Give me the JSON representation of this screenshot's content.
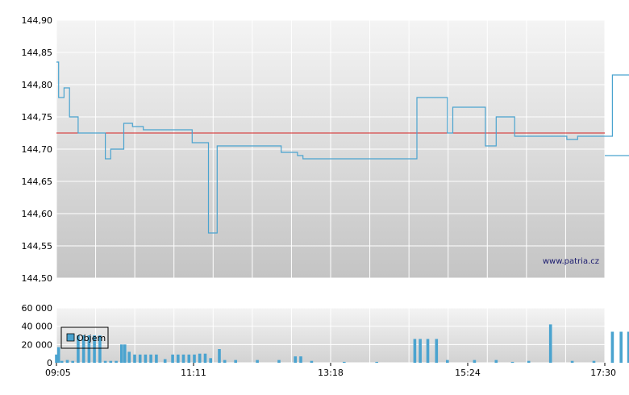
{
  "chart_data": [
    {
      "type": "line",
      "title": "",
      "xlabel": "",
      "ylabel": "",
      "ylim": [
        144.5,
        144.9
      ],
      "y_ticks": [
        "144,90",
        "144,85",
        "144,80",
        "144,75",
        "144,70",
        "144,65",
        "144,60",
        "144,55",
        "144,50"
      ],
      "grid": true,
      "reference_line": {
        "value": 144.725,
        "color": "#d62020"
      },
      "series": [
        {
          "color": "#4aa3cf",
          "step": true,
          "points": [
            [
              "09:05",
              144.835
            ],
            [
              "09:07",
              144.78
            ],
            [
              "09:12",
              144.795
            ],
            [
              "09:17",
              144.75
            ],
            [
              "09:25",
              144.725
            ],
            [
              "09:50",
              144.685
            ],
            [
              "09:55",
              144.7
            ],
            [
              "10:07",
              144.74
            ],
            [
              "10:15",
              144.735
            ],
            [
              "10:25",
              144.73
            ],
            [
              "11:10",
              144.71
            ],
            [
              "11:25",
              144.57
            ],
            [
              "11:33",
              144.705
            ],
            [
              "12:32",
              144.695
            ],
            [
              "12:47",
              144.69
            ],
            [
              "12:52",
              144.685
            ],
            [
              "14:37",
              144.78
            ],
            [
              "15:05",
              144.725
            ],
            [
              "15:10",
              144.765
            ],
            [
              "15:40",
              144.705
            ],
            [
              "15:50",
              144.75
            ],
            [
              "16:07",
              144.72
            ],
            [
              "16:55",
              144.715
            ],
            [
              "17:05",
              144.72
            ],
            [
              "17:37",
              144.815
            ],
            [
              "18:05",
              144.775
            ],
            [
              "18:15",
              144.68
            ],
            [
              "18:35",
              144.69
            ]
          ]
        }
      ],
      "watermark": "www.patria.cz"
    },
    {
      "type": "bar",
      "title": "",
      "ylim": [
        0,
        60000
      ],
      "y_ticks": [
        "60 000",
        "40 000",
        "20 000",
        "0"
      ],
      "x_ticks": [
        "09:05",
        "11:11",
        "13:18",
        "15:24",
        "17:30"
      ],
      "x_range": [
        "09:05",
        "17:30"
      ],
      "grid": true,
      "legend": {
        "entries": [
          "Objem"
        ],
        "position": "top-left"
      },
      "series": [
        {
          "name": "Objem",
          "color": "#4aa3cf",
          "bars": [
            [
              "09:05",
              9000
            ],
            [
              "09:07",
              17000
            ],
            [
              "09:10",
              2000
            ],
            [
              "09:15",
              3000
            ],
            [
              "09:20",
              2000
            ],
            [
              "09:25",
              30000
            ],
            [
              "09:30",
              30000
            ],
            [
              "09:35",
              30000
            ],
            [
              "09:40",
              30000
            ],
            [
              "09:45",
              30000
            ],
            [
              "09:50",
              2000
            ],
            [
              "09:55",
              2000
            ],
            [
              "10:00",
              2000
            ],
            [
              "10:05",
              20000
            ],
            [
              "10:08",
              20000
            ],
            [
              "10:12",
              12000
            ],
            [
              "10:17",
              9000
            ],
            [
              "10:22",
              9000
            ],
            [
              "10:27",
              9000
            ],
            [
              "10:32",
              9000
            ],
            [
              "10:37",
              9000
            ],
            [
              "10:45",
              4000
            ],
            [
              "10:52",
              9000
            ],
            [
              "10:57",
              9000
            ],
            [
              "11:02",
              9000
            ],
            [
              "11:07",
              9000
            ],
            [
              "11:12",
              9000
            ],
            [
              "11:17",
              10000
            ],
            [
              "11:22",
              10000
            ],
            [
              "11:27",
              5000
            ],
            [
              "11:35",
              15000
            ],
            [
              "11:40",
              3000
            ],
            [
              "11:50",
              3000
            ],
            [
              "12:10",
              3000
            ],
            [
              "12:30",
              3000
            ],
            [
              "12:45",
              7000
            ],
            [
              "12:50",
              7000
            ],
            [
              "13:00",
              2000
            ],
            [
              "13:30",
              1000
            ],
            [
              "14:00",
              1000
            ],
            [
              "14:35",
              26000
            ],
            [
              "14:40",
              26000
            ],
            [
              "14:47",
              26000
            ],
            [
              "14:55",
              26000
            ],
            [
              "15:05",
              3000
            ],
            [
              "15:30",
              3000
            ],
            [
              "15:50",
              3000
            ],
            [
              "16:05",
              1000
            ],
            [
              "16:20",
              2000
            ],
            [
              "16:40",
              42000
            ],
            [
              "17:00",
              2000
            ],
            [
              "17:20",
              2000
            ],
            [
              "17:37",
              34000
            ],
            [
              "17:45",
              34000
            ],
            [
              "17:52",
              34000
            ],
            [
              "18:00",
              34000
            ],
            [
              "18:10",
              8000
            ],
            [
              "18:20",
              8000
            ],
            [
              "18:30",
              8000
            ]
          ]
        }
      ]
    }
  ]
}
